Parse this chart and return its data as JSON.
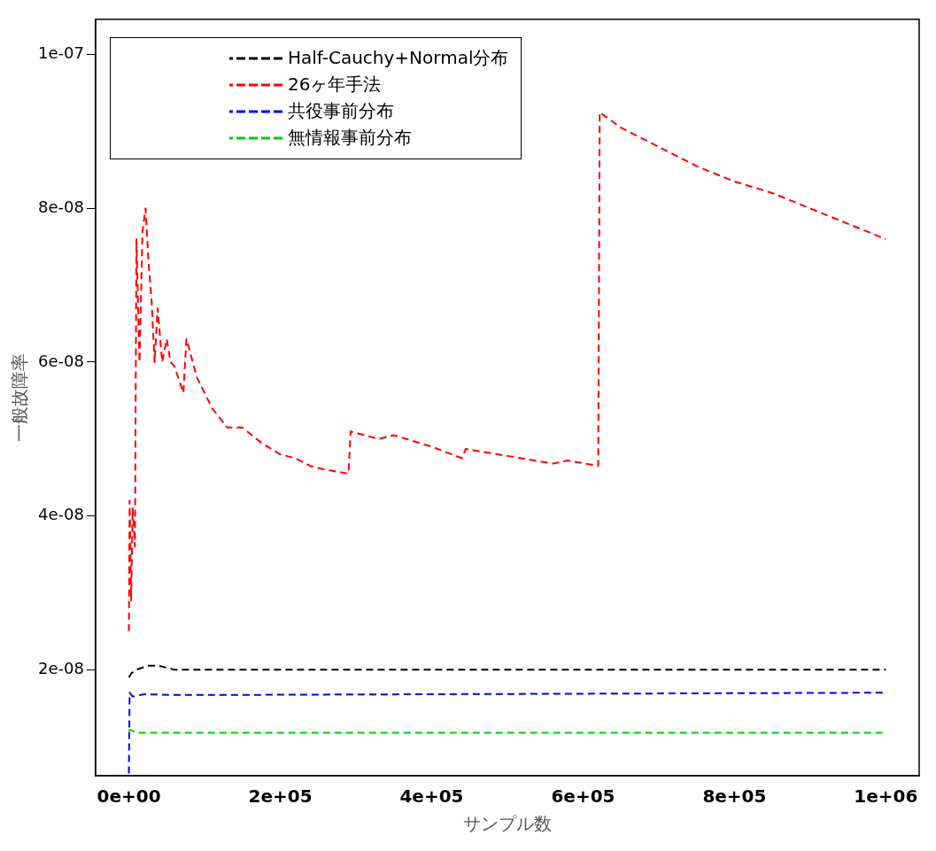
{
  "chart_data": {
    "type": "line",
    "xlabel": "サンプル数",
    "ylabel": "一般故障率",
    "xlim": [
      -44000,
      1044000
    ],
    "ylim": [
      6.2e-09,
      1.046e-07
    ],
    "xticks": [
      {
        "value": 0,
        "label": "0e+00"
      },
      {
        "value": 200000,
        "label": "2e+05"
      },
      {
        "value": 400000,
        "label": "4e+05"
      },
      {
        "value": 600000,
        "label": "6e+05"
      },
      {
        "value": 800000,
        "label": "8e+05"
      },
      {
        "value": 1000000,
        "label": "1e+06"
      }
    ],
    "yticks": [
      {
        "value": 2e-08,
        "label": "2e-08"
      },
      {
        "value": 4e-08,
        "label": "4e-08"
      },
      {
        "value": 6e-08,
        "label": "6e-08"
      },
      {
        "value": 8e-08,
        "label": "8e-08"
      },
      {
        "value": 1e-07,
        "label": "1e-07"
      }
    ],
    "legend": "top left",
    "line_style": "dashed",
    "grid": false,
    "series": [
      {
        "name": "Half-Cauchy+Normal分布",
        "color": "#000000",
        "x": [
          0,
          3000,
          10000,
          25000,
          40000,
          60000,
          1000000
        ],
        "values": [
          1.9e-08,
          1.95e-08,
          2e-08,
          2.05e-08,
          2.05e-08,
          2e-08,
          2e-08
        ]
      },
      {
        "name": "26ヶ年手法",
        "color": "#ff0000",
        "x": [
          0,
          1000,
          3000,
          5000,
          8000,
          10000,
          14000,
          18000,
          22000,
          26000,
          30000,
          34000,
          38000,
          44000,
          50000,
          55000,
          60000,
          72000,
          76000,
          90000,
          110000,
          130000,
          150000,
          175000,
          200000,
          220000,
          240000,
          260000,
          290000,
          293000,
          330000,
          350000,
          400000,
          440000,
          445000,
          500000,
          560000,
          580000,
          620000,
          622000,
          650000,
          700000,
          750000,
          800000,
          850000,
          900000,
          950000,
          1000000
        ],
        "values": [
          2.5e-08,
          4.2e-08,
          2.9e-08,
          4.1e-08,
          3.6e-08,
          7.6e-08,
          6e-08,
          7.7e-08,
          8e-08,
          7.3e-08,
          6.8e-08,
          6e-08,
          6.7e-08,
          6e-08,
          6.3e-08,
          6e-08,
          5.95e-08,
          5.6e-08,
          6.3e-08,
          5.8e-08,
          5.4e-08,
          5.15e-08,
          5.15e-08,
          4.95e-08,
          4.8e-08,
          4.75e-08,
          4.65e-08,
          4.6e-08,
          4.55e-08,
          5.1e-08,
          5e-08,
          5.05e-08,
          4.9e-08,
          4.75e-08,
          4.87e-08,
          4.78e-08,
          4.68e-08,
          4.72e-08,
          4.65e-08,
          9.25e-08,
          9.05e-08,
          8.8e-08,
          8.55e-08,
          8.35e-08,
          8.2e-08,
          8e-08,
          7.8e-08,
          7.6e-08
        ]
      },
      {
        "name": "共役事前分布",
        "color": "#0000ff",
        "x": [
          0,
          1000,
          5000,
          20000,
          60000,
          100000,
          1000000
        ],
        "values": [
          6.5e-09,
          1.7e-08,
          1.65e-08,
          1.68e-08,
          1.67e-08,
          1.67e-08,
          1.7e-08
        ]
      },
      {
        "name": "無情報事前分布",
        "color": "#00cc00",
        "x": [
          0,
          1000,
          10000,
          1000000
        ],
        "values": [
          1.2e-08,
          1.22e-08,
          1.18e-08,
          1.18e-08
        ]
      }
    ]
  }
}
